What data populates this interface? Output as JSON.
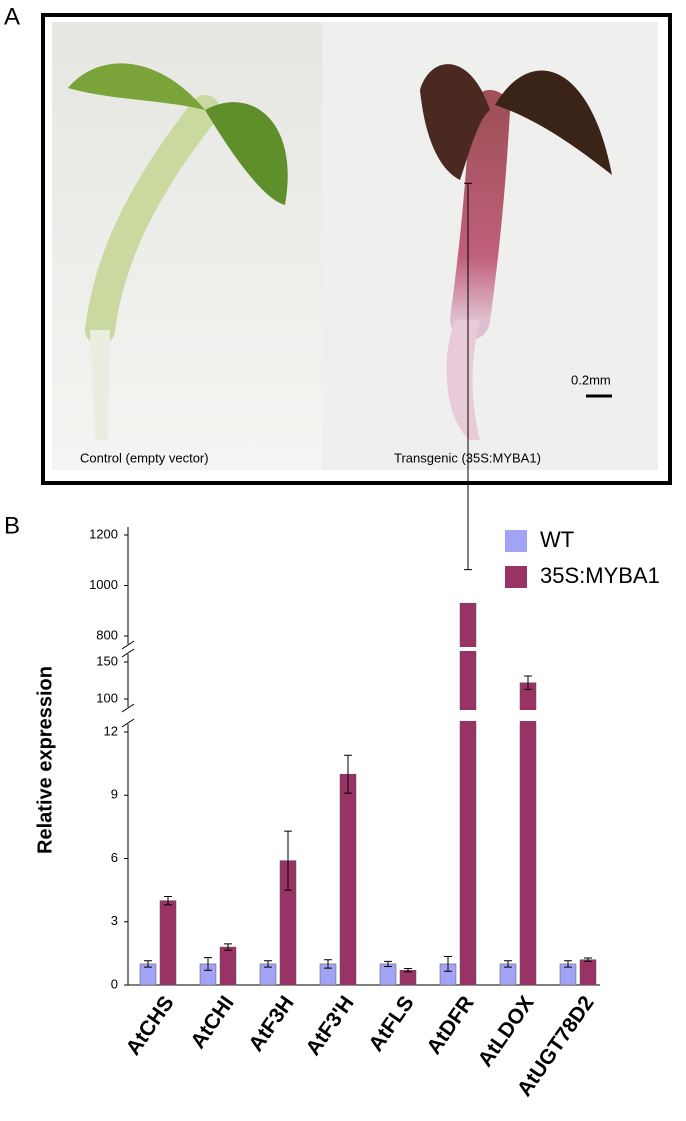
{
  "panel_a": {
    "label": "A",
    "captions": [
      "Control (empty vector)",
      "Transgenic (35S:MYBA1)"
    ],
    "scale_bar": "0.2mm"
  },
  "chart_data": {
    "type": "bar",
    "panel_label": "B",
    "y_label": "Relative expression",
    "categories": [
      "AtCHS",
      "AtCHI",
      "AtF3H",
      "AtF3'H",
      "AtFLS",
      "AtDFR",
      "AtLDOX",
      "AtUGT78D2"
    ],
    "series": [
      {
        "name": "WT",
        "color": "#a3a3f5",
        "values": [
          1.0,
          1.0,
          1.0,
          1.0,
          1.0,
          1.0,
          1.0,
          1.0
        ],
        "errors": [
          0.15,
          0.3,
          0.15,
          0.2,
          0.12,
          0.35,
          0.15,
          0.15
        ]
      },
      {
        "name": "35S:MYBA1",
        "color": "#993366",
        "values": [
          4.0,
          1.8,
          5.9,
          10.0,
          0.7,
          930,
          122,
          1.2
        ],
        "errors": [
          0.2,
          0.15,
          1.4,
          0.9,
          0.08,
          133,
          9,
          0.08
        ]
      }
    ],
    "axis_segments": [
      {
        "ylim": [
          0,
          12
        ],
        "yticks": [
          0,
          3,
          6,
          9,
          12
        ]
      },
      {
        "ylim": [
          100,
          150
        ],
        "yticks": [
          100,
          150
        ]
      },
      {
        "ylim": [
          800,
          1200
        ],
        "yticks": [
          800,
          1000,
          1200
        ]
      }
    ],
    "legend": "top-right"
  }
}
